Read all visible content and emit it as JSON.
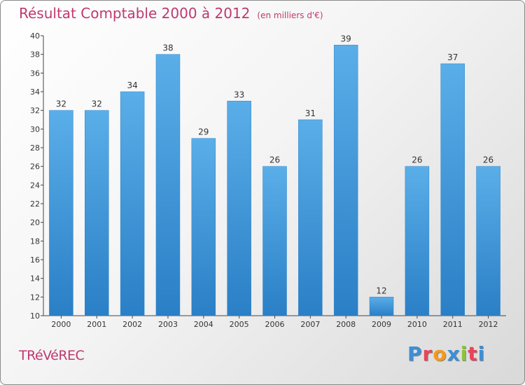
{
  "title": "Résultat Comptable 2000 à 2012",
  "subtitle": "(en milliers d'€)",
  "city": "TRéVéREC",
  "brand": {
    "letters": [
      "P",
      "r",
      "o",
      "x",
      "i",
      "t",
      "i"
    ],
    "colors": [
      "#3d8fd6",
      "#e8455a",
      "#f39a1d",
      "#3d8fd6",
      "#8bc43f",
      "#e8455a",
      "#3d8fd6"
    ]
  },
  "colors": {
    "title": "#c03870",
    "bar_light": "#5aaee8",
    "bar_dark": "#2a7fc6"
  },
  "chart_data": {
    "type": "bar",
    "title": "Résultat Comptable 2000 à 2012",
    "xlabel": "",
    "ylabel": "",
    "ylim": [
      10,
      40
    ],
    "yticks": [
      10,
      12,
      14,
      16,
      18,
      20,
      22,
      24,
      26,
      28,
      30,
      32,
      34,
      36,
      38,
      40
    ],
    "categories": [
      "2000",
      "2001",
      "2002",
      "2003",
      "2004",
      "2005",
      "2006",
      "2007",
      "2008",
      "2009",
      "2010",
      "2011",
      "2012"
    ],
    "values": [
      32,
      32,
      34,
      38,
      29,
      33,
      26,
      31,
      39,
      12,
      26,
      37,
      26
    ],
    "grid": false
  }
}
